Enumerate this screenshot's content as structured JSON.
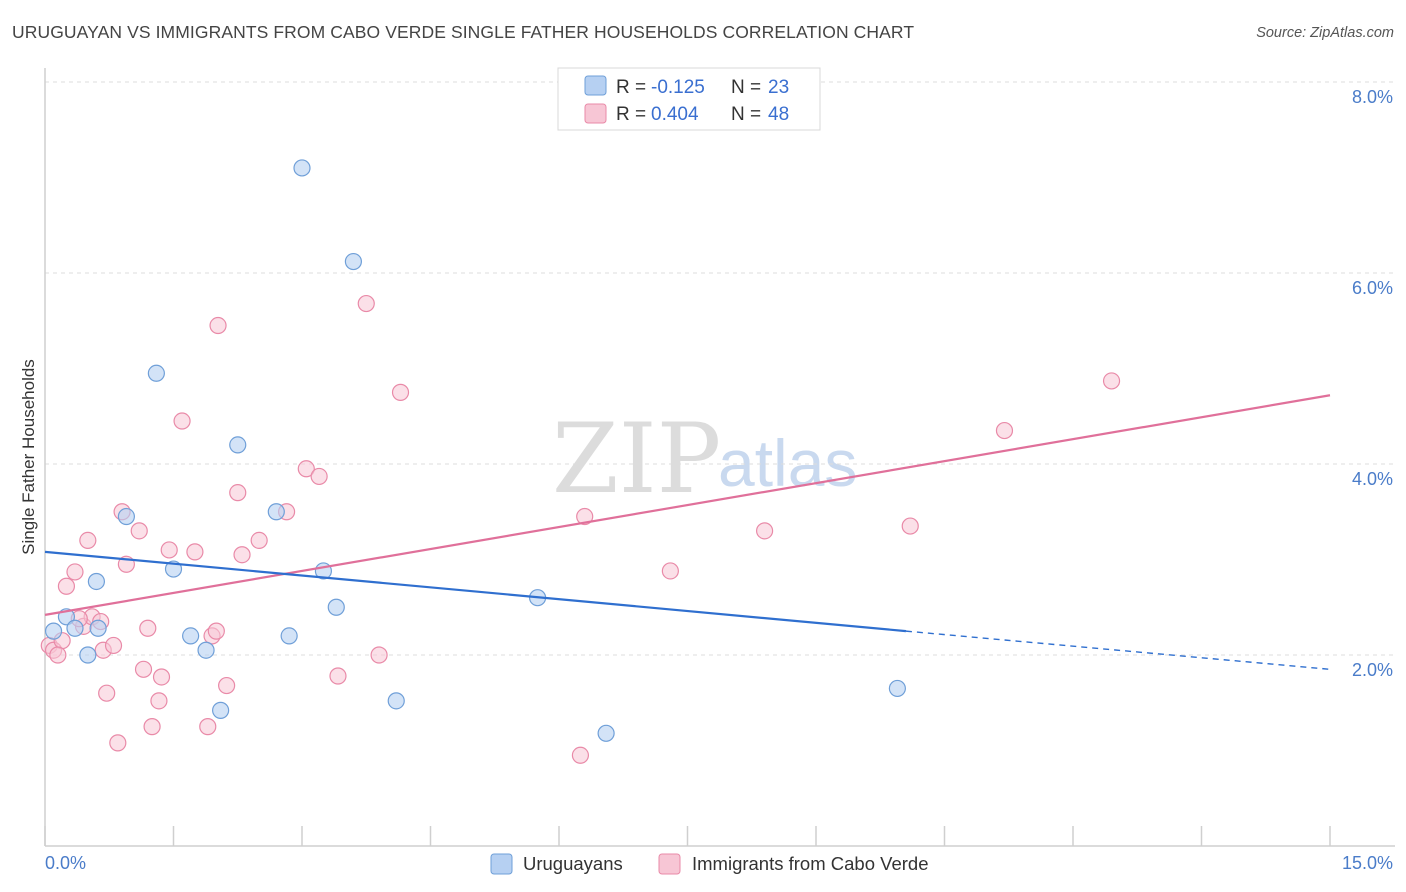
{
  "header": {
    "title": "URUGUAYAN VS IMMIGRANTS FROM CABO VERDE SINGLE FATHER HOUSEHOLDS CORRELATION CHART",
    "source": "Source: ZipAtlas.com"
  },
  "watermark": {
    "zip": "ZIP",
    "atlas": "atlas"
  },
  "legend": {
    "rows": [
      {
        "r_label": "R = ",
        "r_value": "-0.125",
        "n_label": "N = ",
        "n_value": "23"
      },
      {
        "r_label": "R = ",
        "r_value": "0.404",
        "n_label": "N = ",
        "n_value": "48"
      }
    ]
  },
  "colors": {
    "uruguayans_fill": "#b6d0f2",
    "uruguayans_stroke": "#6f9fd8",
    "uruguayans_line": "#2f6fcf",
    "caboverde_fill": "#f7c6d5",
    "caboverde_stroke": "#e98aa8",
    "caboverde_line": "#e0709a",
    "axis_label": "#4a7cc9",
    "grid": "#dddddd"
  },
  "chart_data": {
    "type": "scatter",
    "title": "URUGUAYAN VS IMMIGRANTS FROM CABO VERDE SINGLE FATHER HOUSEHOLDS CORRELATION CHART",
    "xlabel": "",
    "ylabel": "Single Father Households",
    "xlim": [
      0,
      15
    ],
    "ylim": [
      0,
      8.2
    ],
    "x_tick_labels": [
      "0.0%",
      "15.0%"
    ],
    "y_ticks": [
      2,
      4,
      6,
      8
    ],
    "y_tick_labels": [
      "2.0%",
      "4.0%",
      "6.0%",
      "8.0%"
    ],
    "series": [
      {
        "name": "Uruguayans",
        "r": -0.125,
        "n": 23,
        "points": [
          [
            0.1,
            2.25
          ],
          [
            0.25,
            2.4
          ],
          [
            0.35,
            2.28
          ],
          [
            0.5,
            2.0
          ],
          [
            0.62,
            2.28
          ],
          [
            0.95,
            3.45
          ],
          [
            1.3,
            4.95
          ],
          [
            1.5,
            2.9
          ],
          [
            1.7,
            2.2
          ],
          [
            1.88,
            2.05
          ],
          [
            2.05,
            1.42
          ],
          [
            2.25,
            4.2
          ],
          [
            2.7,
            3.5
          ],
          [
            2.85,
            2.2
          ],
          [
            3.0,
            7.1
          ],
          [
            3.25,
            2.88
          ],
          [
            3.4,
            2.5
          ],
          [
            3.6,
            6.12
          ],
          [
            4.1,
            1.52
          ],
          [
            5.75,
            2.6
          ],
          [
            6.55,
            1.18
          ],
          [
            9.95,
            1.65
          ],
          [
            0.6,
            2.77
          ]
        ],
        "trend": {
          "x0": 0,
          "y0": 3.08,
          "x1": 10.05,
          "y1": 2.25,
          "dash_to_x": 15,
          "dash_to_y": 1.85
        }
      },
      {
        "name": "Immigrants from Cabo Verde",
        "r": 0.404,
        "n": 48,
        "points": [
          [
            0.05,
            2.1
          ],
          [
            0.1,
            2.05
          ],
          [
            0.2,
            2.15
          ],
          [
            0.25,
            2.72
          ],
          [
            0.35,
            2.87
          ],
          [
            0.45,
            2.3
          ],
          [
            0.5,
            3.2
          ],
          [
            0.55,
            2.4
          ],
          [
            0.65,
            2.35
          ],
          [
            0.68,
            2.05
          ],
          [
            0.72,
            1.6
          ],
          [
            0.8,
            2.1
          ],
          [
            0.85,
            1.08
          ],
          [
            0.9,
            3.5
          ],
          [
            0.95,
            2.95
          ],
          [
            1.1,
            3.3
          ],
          [
            1.15,
            1.85
          ],
          [
            1.2,
            2.28
          ],
          [
            1.25,
            1.25
          ],
          [
            1.33,
            1.52
          ],
          [
            1.36,
            1.77
          ],
          [
            1.45,
            3.1
          ],
          [
            1.6,
            4.45
          ],
          [
            1.75,
            3.08
          ],
          [
            1.9,
            1.25
          ],
          [
            1.95,
            2.2
          ],
          [
            2.0,
            2.25
          ],
          [
            2.02,
            5.45
          ],
          [
            2.12,
            1.68
          ],
          [
            2.25,
            3.7
          ],
          [
            2.3,
            3.05
          ],
          [
            2.5,
            3.2
          ],
          [
            2.82,
            3.5
          ],
          [
            3.05,
            3.95
          ],
          [
            3.2,
            3.87
          ],
          [
            3.42,
            1.78
          ],
          [
            3.75,
            5.68
          ],
          [
            3.9,
            2.0
          ],
          [
            4.15,
            4.75
          ],
          [
            6.25,
            0.95
          ],
          [
            6.3,
            3.45
          ],
          [
            7.3,
            2.88
          ],
          [
            8.4,
            3.3
          ],
          [
            10.1,
            3.35
          ],
          [
            11.2,
            4.35
          ],
          [
            12.45,
            4.87
          ],
          [
            0.15,
            2.0
          ],
          [
            0.4,
            2.38
          ]
        ],
        "trend": {
          "x0": 0,
          "y0": 2.42,
          "x1": 15,
          "y1": 4.72
        }
      }
    ]
  },
  "bottom_legend": {
    "items": [
      {
        "label": "Uruguayans"
      },
      {
        "label": "Immigrants from Cabo Verde"
      }
    ]
  }
}
